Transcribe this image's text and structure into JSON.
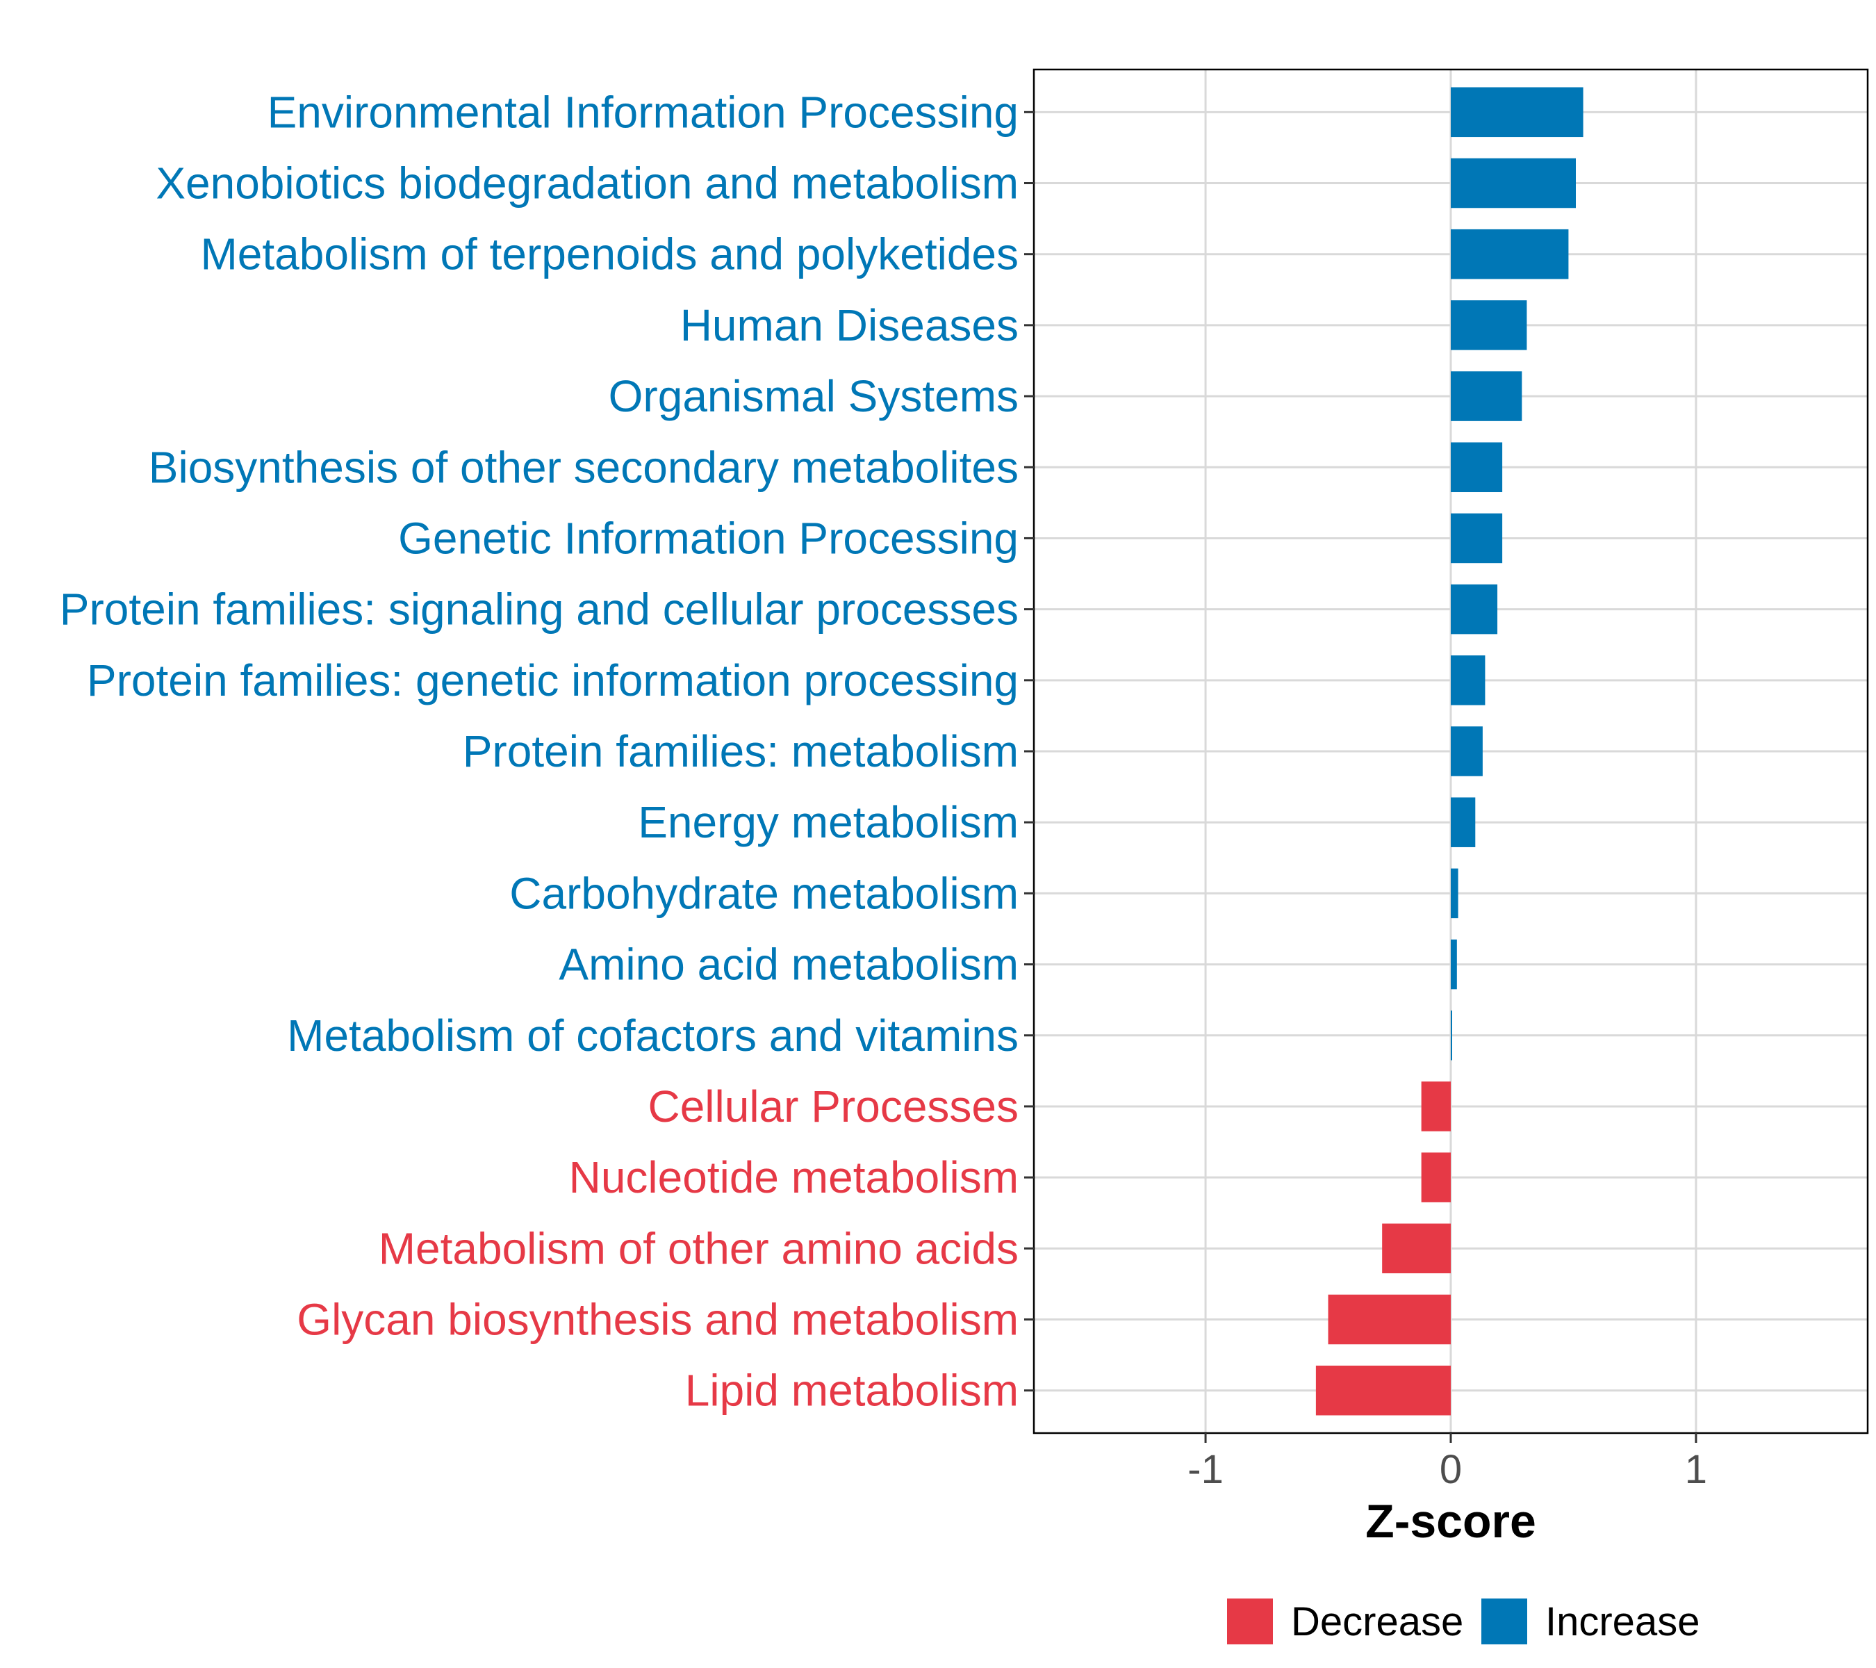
{
  "chart_data": {
    "type": "bar",
    "orientation": "horizontal",
    "title": "",
    "xlabel": "Z-score",
    "ylabel": "",
    "xlim": [
      -1.7,
      1.7
    ],
    "xticks": [
      -1,
      0,
      1
    ],
    "xtick_labels": [
      "-1",
      "0",
      "1"
    ],
    "grid": true,
    "categories": [
      "Environmental Information Processing",
      "Xenobiotics biodegradation and metabolism",
      "Metabolism of terpenoids and polyketides",
      "Human Diseases",
      "Organismal Systems",
      "Biosynthesis of other secondary metabolites",
      "Genetic Information Processing",
      "Protein families: signaling and cellular processes",
      "Protein families: genetic information processing",
      "Protein families: metabolism",
      "Energy metabolism",
      "Carbohydrate metabolism",
      "Amino acid metabolism",
      "Metabolism of cofactors and vitamins",
      "Cellular Processes",
      "Nucleotide metabolism",
      "Metabolism of other amino acids",
      "Glycan biosynthesis and metabolism",
      "Lipid metabolism"
    ],
    "values": [
      0.54,
      0.51,
      0.48,
      0.31,
      0.29,
      0.21,
      0.21,
      0.19,
      0.14,
      0.13,
      0.1,
      0.03,
      0.025,
      0.005,
      -0.12,
      -0.12,
      -0.28,
      -0.5,
      -0.55
    ],
    "legend": {
      "position": "bottom",
      "entries": [
        {
          "name": "Decrease",
          "color": "#E63946"
        },
        {
          "name": "Increase",
          "color": "#0077B6"
        }
      ]
    },
    "colors": {
      "increase": "#0077B6",
      "decrease": "#E63946"
    }
  }
}
